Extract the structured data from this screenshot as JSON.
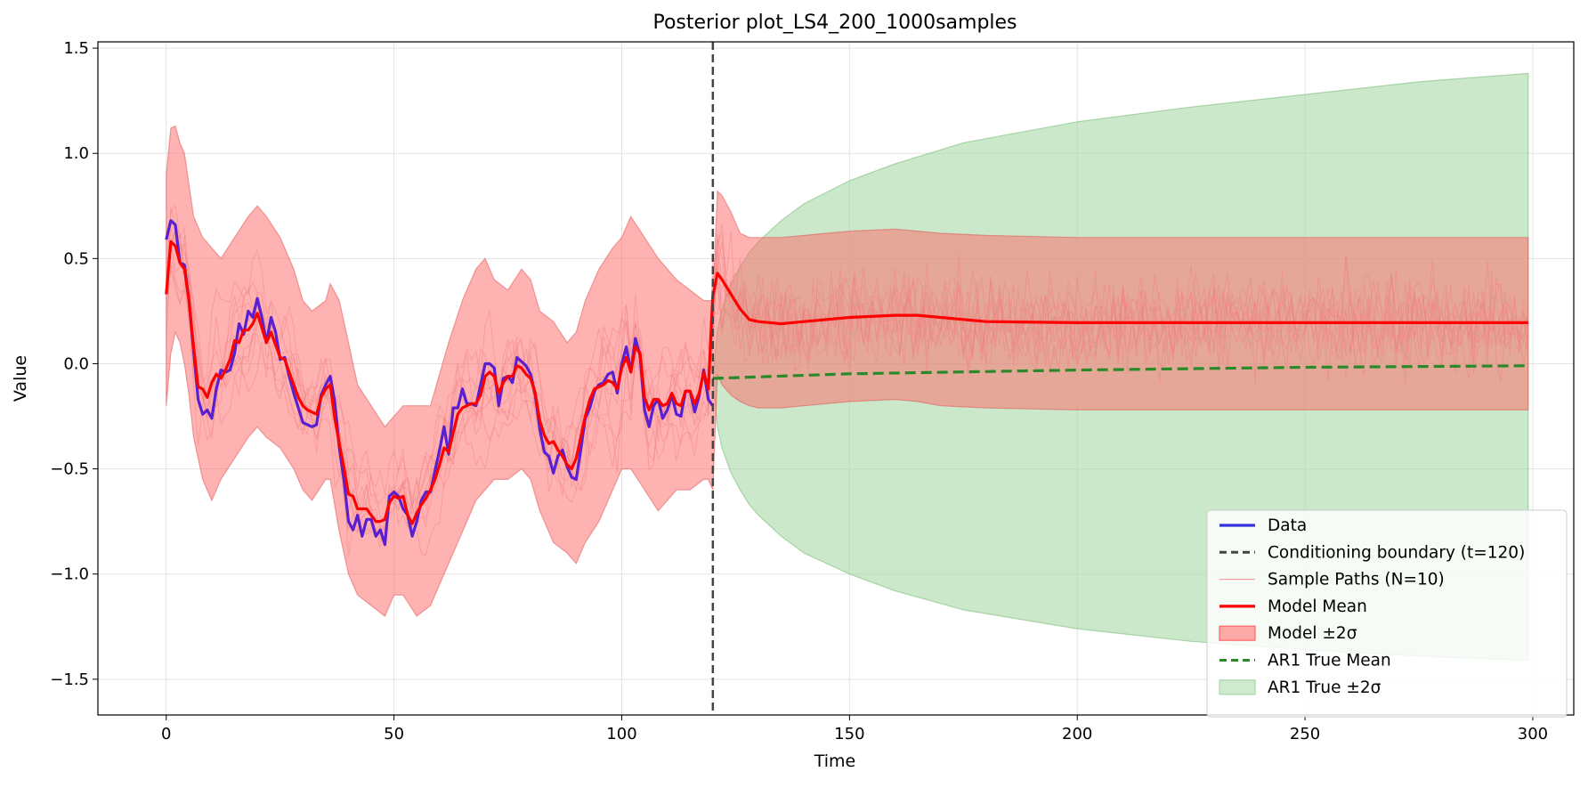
{
  "chart_data": {
    "type": "line",
    "title": "Posterior plot_LS4_200_1000samples",
    "xlabel": "Time",
    "ylabel": "Value",
    "xlim": [
      -15,
      309
    ],
    "ylim": [
      -1.67,
      1.53
    ],
    "x_ticks": [
      0,
      50,
      100,
      150,
      200,
      250,
      300
    ],
    "y_ticks": [
      -1.5,
      -1.0,
      -0.5,
      0.0,
      0.5,
      1.0,
      1.5
    ],
    "x_tick_labels": [
      "0",
      "50",
      "100",
      "150",
      "200",
      "250",
      "300"
    ],
    "y_tick_labels": [
      "−1.5",
      "−1.0",
      "−0.5",
      "0.0",
      "0.5",
      "1.0",
      "1.5"
    ],
    "grid": true,
    "legend_placement": "lower-right",
    "conditioning_boundary": 120,
    "colors": {
      "data": "#5a1fd0",
      "boundary": "#444444",
      "sample_paths": "#f08080",
      "model_mean": "#ff0000",
      "model_band": "#ff6666",
      "ar1_mean": "#2a8a2a",
      "ar1_band": "#a8d8a8"
    },
    "series": [
      {
        "name": "Data",
        "x": [
          0,
          1,
          2,
          3,
          4,
          5,
          6,
          7,
          8,
          9,
          10,
          11,
          12,
          13,
          14,
          15,
          16,
          17,
          18,
          19,
          20,
          21,
          22,
          23,
          24,
          25,
          26,
          27,
          28,
          29,
          30,
          31,
          32,
          33,
          34,
          35,
          36,
          37,
          38,
          39,
          40,
          41,
          42,
          43,
          44,
          45,
          46,
          47,
          48,
          49,
          50,
          51,
          52,
          53,
          54,
          55,
          56,
          57,
          58,
          59,
          60,
          61,
          62,
          63,
          64,
          65,
          66,
          67,
          68,
          69,
          70,
          71,
          72,
          73,
          74,
          75,
          76,
          77,
          78,
          79,
          80,
          81,
          82,
          83,
          84,
          85,
          86,
          87,
          88,
          89,
          90,
          91,
          92,
          93,
          94,
          95,
          96,
          97,
          98,
          99,
          100,
          101,
          102,
          103,
          104,
          105,
          106,
          107,
          108,
          109,
          110,
          111,
          112,
          113,
          114,
          115,
          116,
          117,
          118,
          119,
          120
        ],
        "values": [
          0.59,
          0.68,
          0.66,
          0.48,
          0.47,
          0.3,
          0.06,
          -0.17,
          -0.24,
          -0.22,
          -0.26,
          -0.12,
          -0.03,
          -0.04,
          -0.03,
          0.05,
          0.19,
          0.14,
          0.25,
          0.22,
          0.31,
          0.22,
          0.1,
          0.22,
          0.15,
          0.02,
          0.03,
          -0.06,
          -0.14,
          -0.21,
          -0.28,
          -0.29,
          -0.3,
          -0.29,
          -0.15,
          -0.1,
          -0.06,
          -0.18,
          -0.4,
          -0.55,
          -0.75,
          -0.79,
          -0.72,
          -0.82,
          -0.74,
          -0.74,
          -0.82,
          -0.79,
          -0.86,
          -0.63,
          -0.61,
          -0.63,
          -0.69,
          -0.72,
          -0.82,
          -0.75,
          -0.65,
          -0.61,
          -0.61,
          -0.51,
          -0.41,
          -0.3,
          -0.43,
          -0.21,
          -0.21,
          -0.12,
          -0.19,
          -0.19,
          -0.2,
          -0.1,
          0.0,
          0.0,
          -0.02,
          -0.2,
          -0.07,
          -0.06,
          -0.09,
          0.03,
          0.01,
          -0.01,
          -0.05,
          -0.15,
          -0.31,
          -0.42,
          -0.44,
          -0.52,
          -0.44,
          -0.41,
          -0.49,
          -0.54,
          -0.55,
          -0.41,
          -0.26,
          -0.21,
          -0.13,
          -0.1,
          -0.09,
          -0.05,
          -0.04,
          -0.14,
          0.0,
          0.08,
          -0.04,
          0.12,
          0.04,
          -0.22,
          -0.3,
          -0.2,
          -0.17,
          -0.26,
          -0.22,
          -0.15,
          -0.24,
          -0.25,
          -0.13,
          -0.13,
          -0.23,
          -0.15,
          -0.03,
          -0.17,
          -0.2
        ]
      },
      {
        "name": "Model Mean",
        "x": [
          0,
          1,
          2,
          3,
          4,
          5,
          6,
          7,
          8,
          9,
          10,
          11,
          12,
          13,
          14,
          15,
          16,
          17,
          18,
          19,
          20,
          21,
          22,
          23,
          24,
          25,
          26,
          27,
          28,
          29,
          30,
          31,
          32,
          33,
          34,
          35,
          36,
          37,
          38,
          39,
          40,
          41,
          42,
          43,
          44,
          45,
          46,
          47,
          48,
          49,
          50,
          51,
          52,
          53,
          54,
          55,
          56,
          57,
          58,
          59,
          60,
          61,
          62,
          63,
          64,
          65,
          66,
          67,
          68,
          69,
          70,
          71,
          72,
          73,
          74,
          75,
          76,
          77,
          78,
          79,
          80,
          81,
          82,
          83,
          84,
          85,
          86,
          87,
          88,
          89,
          90,
          91,
          92,
          93,
          94,
          95,
          96,
          97,
          98,
          99,
          100,
          101,
          102,
          103,
          104,
          105,
          106,
          107,
          108,
          109,
          110,
          111,
          112,
          113,
          114,
          115,
          116,
          117,
          118,
          119,
          120,
          121,
          122,
          124,
          126,
          128,
          130,
          135,
          140,
          150,
          160,
          165,
          170,
          180,
          200,
          250,
          299
        ],
        "values": [
          0.33,
          0.58,
          0.56,
          0.48,
          0.45,
          0.3,
          0.08,
          -0.11,
          -0.12,
          -0.16,
          -0.09,
          -0.05,
          -0.07,
          -0.03,
          0.02,
          0.11,
          0.1,
          0.16,
          0.16,
          0.19,
          0.24,
          0.17,
          0.1,
          0.15,
          0.09,
          0.03,
          0.02,
          -0.04,
          -0.1,
          -0.16,
          -0.2,
          -0.22,
          -0.23,
          -0.24,
          -0.16,
          -0.12,
          -0.1,
          -0.26,
          -0.38,
          -0.49,
          -0.62,
          -0.63,
          -0.69,
          -0.69,
          -0.69,
          -0.72,
          -0.75,
          -0.75,
          -0.74,
          -0.66,
          -0.63,
          -0.64,
          -0.63,
          -0.72,
          -0.76,
          -0.71,
          -0.67,
          -0.64,
          -0.6,
          -0.55,
          -0.48,
          -0.4,
          -0.42,
          -0.33,
          -0.24,
          -0.21,
          -0.2,
          -0.19,
          -0.19,
          -0.15,
          -0.06,
          -0.04,
          -0.06,
          -0.14,
          -0.09,
          -0.06,
          -0.06,
          -0.01,
          -0.02,
          -0.05,
          -0.07,
          -0.14,
          -0.27,
          -0.34,
          -0.38,
          -0.37,
          -0.41,
          -0.44,
          -0.48,
          -0.5,
          -0.45,
          -0.35,
          -0.25,
          -0.17,
          -0.12,
          -0.11,
          -0.1,
          -0.08,
          -0.09,
          -0.12,
          -0.02,
          0.03,
          -0.04,
          0.08,
          0.05,
          -0.16,
          -0.22,
          -0.17,
          -0.17,
          -0.2,
          -0.19,
          -0.14,
          -0.19,
          -0.2,
          -0.13,
          -0.13,
          -0.19,
          -0.14,
          -0.04,
          -0.12,
          0.32,
          0.43,
          0.4,
          0.33,
          0.26,
          0.21,
          0.2,
          0.19,
          0.2,
          0.22,
          0.23,
          0.23,
          0.22,
          0.2,
          0.195,
          0.195,
          0.195
        ]
      },
      {
        "name": "AR1 True Mean",
        "x": [
          120,
          150,
          200,
          250,
          299
        ],
        "values": [
          -0.07,
          -0.048,
          -0.03,
          -0.017,
          -0.01
        ]
      }
    ],
    "bands": [
      {
        "name": "Model ±2σ",
        "x": [
          0,
          1,
          2,
          3,
          4,
          5,
          6,
          8,
          10,
          12,
          15,
          18,
          20,
          22,
          25,
          28,
          30,
          32,
          35,
          36,
          38,
          40,
          42,
          45,
          48,
          50,
          52,
          55,
          58,
          60,
          62,
          65,
          68,
          70,
          72,
          75,
          78,
          80,
          82,
          85,
          88,
          90,
          92,
          95,
          98,
          100,
          102,
          105,
          108,
          110,
          112,
          115,
          118,
          119,
          120,
          121,
          122,
          124,
          126,
          128,
          130,
          135,
          140,
          150,
          160,
          165,
          170,
          180,
          200,
          250,
          299
        ],
        "lower": [
          -0.2,
          0.05,
          0.15,
          0.1,
          0.0,
          -0.15,
          -0.35,
          -0.55,
          -0.65,
          -0.55,
          -0.45,
          -0.35,
          -0.3,
          -0.35,
          -0.4,
          -0.5,
          -0.6,
          -0.65,
          -0.55,
          -0.55,
          -0.8,
          -1.0,
          -1.1,
          -1.15,
          -1.2,
          -1.1,
          -1.1,
          -1.2,
          -1.15,
          -1.05,
          -0.95,
          -0.8,
          -0.65,
          -0.6,
          -0.55,
          -0.55,
          -0.5,
          -0.55,
          -0.7,
          -0.85,
          -0.9,
          -0.95,
          -0.85,
          -0.75,
          -0.6,
          -0.5,
          -0.5,
          -0.6,
          -0.7,
          -0.65,
          -0.6,
          -0.6,
          -0.55,
          -0.55,
          -0.6,
          -0.05,
          -0.1,
          -0.15,
          -0.18,
          -0.2,
          -0.21,
          -0.21,
          -0.2,
          -0.18,
          -0.17,
          -0.18,
          -0.2,
          -0.21,
          -0.22,
          -0.22,
          -0.22
        ],
        "upper": [
          0.9,
          1.12,
          1.13,
          1.05,
          1.0,
          0.85,
          0.7,
          0.6,
          0.55,
          0.5,
          0.6,
          0.7,
          0.75,
          0.7,
          0.6,
          0.45,
          0.3,
          0.25,
          0.3,
          0.38,
          0.3,
          0.1,
          -0.1,
          -0.2,
          -0.3,
          -0.25,
          -0.2,
          -0.2,
          -0.2,
          -0.05,
          0.1,
          0.3,
          0.45,
          0.5,
          0.4,
          0.35,
          0.45,
          0.4,
          0.25,
          0.2,
          0.1,
          0.15,
          0.3,
          0.45,
          0.55,
          0.6,
          0.7,
          0.6,
          0.5,
          0.45,
          0.4,
          0.35,
          0.3,
          0.3,
          0.3,
          0.82,
          0.8,
          0.72,
          0.62,
          0.6,
          0.6,
          0.6,
          0.61,
          0.63,
          0.64,
          0.63,
          0.62,
          0.61,
          0.6,
          0.6,
          0.6
        ]
      },
      {
        "name": "AR1 True ±2σ",
        "x": [
          120,
          121,
          122,
          124,
          126,
          128,
          130,
          135,
          140,
          150,
          160,
          175,
          200,
          225,
          250,
          275,
          299
        ],
        "lower": [
          -0.07,
          -0.3,
          -0.4,
          -0.52,
          -0.6,
          -0.67,
          -0.72,
          -0.82,
          -0.9,
          -1.0,
          -1.08,
          -1.17,
          -1.26,
          -1.32,
          -1.36,
          -1.39,
          -1.41
        ],
        "upper": [
          -0.07,
          0.16,
          0.26,
          0.38,
          0.46,
          0.53,
          0.58,
          0.68,
          0.76,
          0.87,
          0.95,
          1.05,
          1.15,
          1.22,
          1.28,
          1.34,
          1.38
        ]
      }
    ],
    "legend": [
      {
        "label": "Data",
        "style": "line",
        "color": "#3333dd"
      },
      {
        "label": "Conditioning boundary (t=120)",
        "style": "dashed",
        "color": "#444444"
      },
      {
        "label": "Sample Paths (N=10)",
        "style": "thin-line",
        "color": "#f4a0a0"
      },
      {
        "label": "Model Mean",
        "style": "line",
        "color": "#ff0000"
      },
      {
        "label": "Model ±2σ",
        "style": "patch",
        "color": "#ff6666"
      },
      {
        "label": "AR1 True Mean",
        "style": "dashed",
        "color": "#2a8a2a"
      },
      {
        "label": "AR1 True ±2σ",
        "style": "patch",
        "color": "#a8d8a8"
      }
    ]
  }
}
